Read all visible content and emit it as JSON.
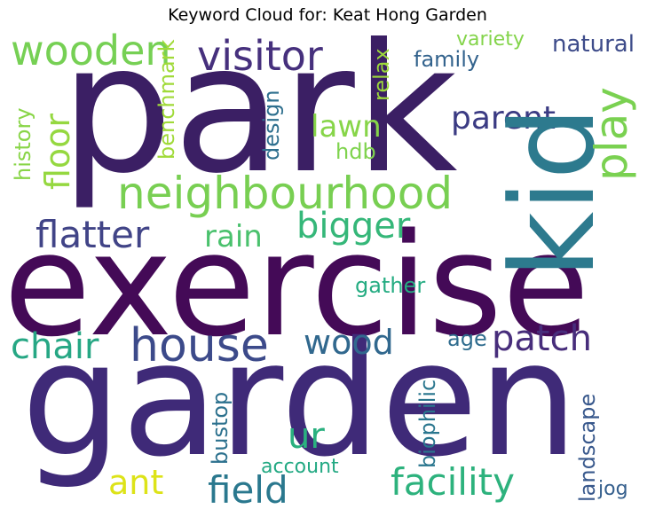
{
  "title": "Keyword Cloud for: Keat Hong Garden",
  "words": [
    {
      "text": "park",
      "color": "#3b1f64"
    },
    {
      "text": "exercise",
      "color": "#440a57"
    },
    {
      "text": "garden",
      "color": "#3f2a78"
    },
    {
      "text": "kid",
      "color": "#2d7a8e"
    },
    {
      "text": "neighbourhood",
      "color": "#78cf52"
    },
    {
      "text": "house",
      "color": "#3c4a8a"
    },
    {
      "text": "visitor",
      "color": "#46307d"
    },
    {
      "text": "wooden",
      "color": "#76d054"
    },
    {
      "text": "play",
      "color": "#7ad151"
    },
    {
      "text": "flatter",
      "color": "#414487"
    },
    {
      "text": "bigger",
      "color": "#35b779"
    },
    {
      "text": "patch",
      "color": "#472d7b"
    },
    {
      "text": "facility",
      "color": "#2db27d"
    },
    {
      "text": "field",
      "color": "#2a788e"
    },
    {
      "text": "chair",
      "color": "#26a784"
    },
    {
      "text": "wood",
      "color": "#31688e"
    },
    {
      "text": "parent",
      "color": "#3b3b83"
    },
    {
      "text": "floor",
      "color": "#95d840"
    },
    {
      "text": "lawn",
      "color": "#87d549"
    },
    {
      "text": "rain",
      "color": "#4ac16d"
    },
    {
      "text": "ant",
      "color": "#dde318"
    },
    {
      "text": "ur",
      "color": "#2ab07f"
    },
    {
      "text": "natural",
      "color": "#3e4c8a"
    },
    {
      "text": "variety",
      "color": "#84d44b"
    },
    {
      "text": "family",
      "color": "#33638d"
    },
    {
      "text": "relax",
      "color": "#9dd93b"
    },
    {
      "text": "benchmark",
      "color": "#a0da39"
    },
    {
      "text": "design",
      "color": "#2e6f8e"
    },
    {
      "text": "history",
      "color": "#89d548"
    },
    {
      "text": "hdb",
      "color": "#7fd34e"
    },
    {
      "text": "gather",
      "color": "#25ac82"
    },
    {
      "text": "age",
      "color": "#2f6c8e"
    },
    {
      "text": "biophilic",
      "color": "#2a768e"
    },
    {
      "text": "bustop",
      "color": "#2c718e"
    },
    {
      "text": "account",
      "color": "#23a983"
    },
    {
      "text": "landscape",
      "color": "#38588c"
    },
    {
      "text": "jog",
      "color": "#355f8d"
    }
  ]
}
